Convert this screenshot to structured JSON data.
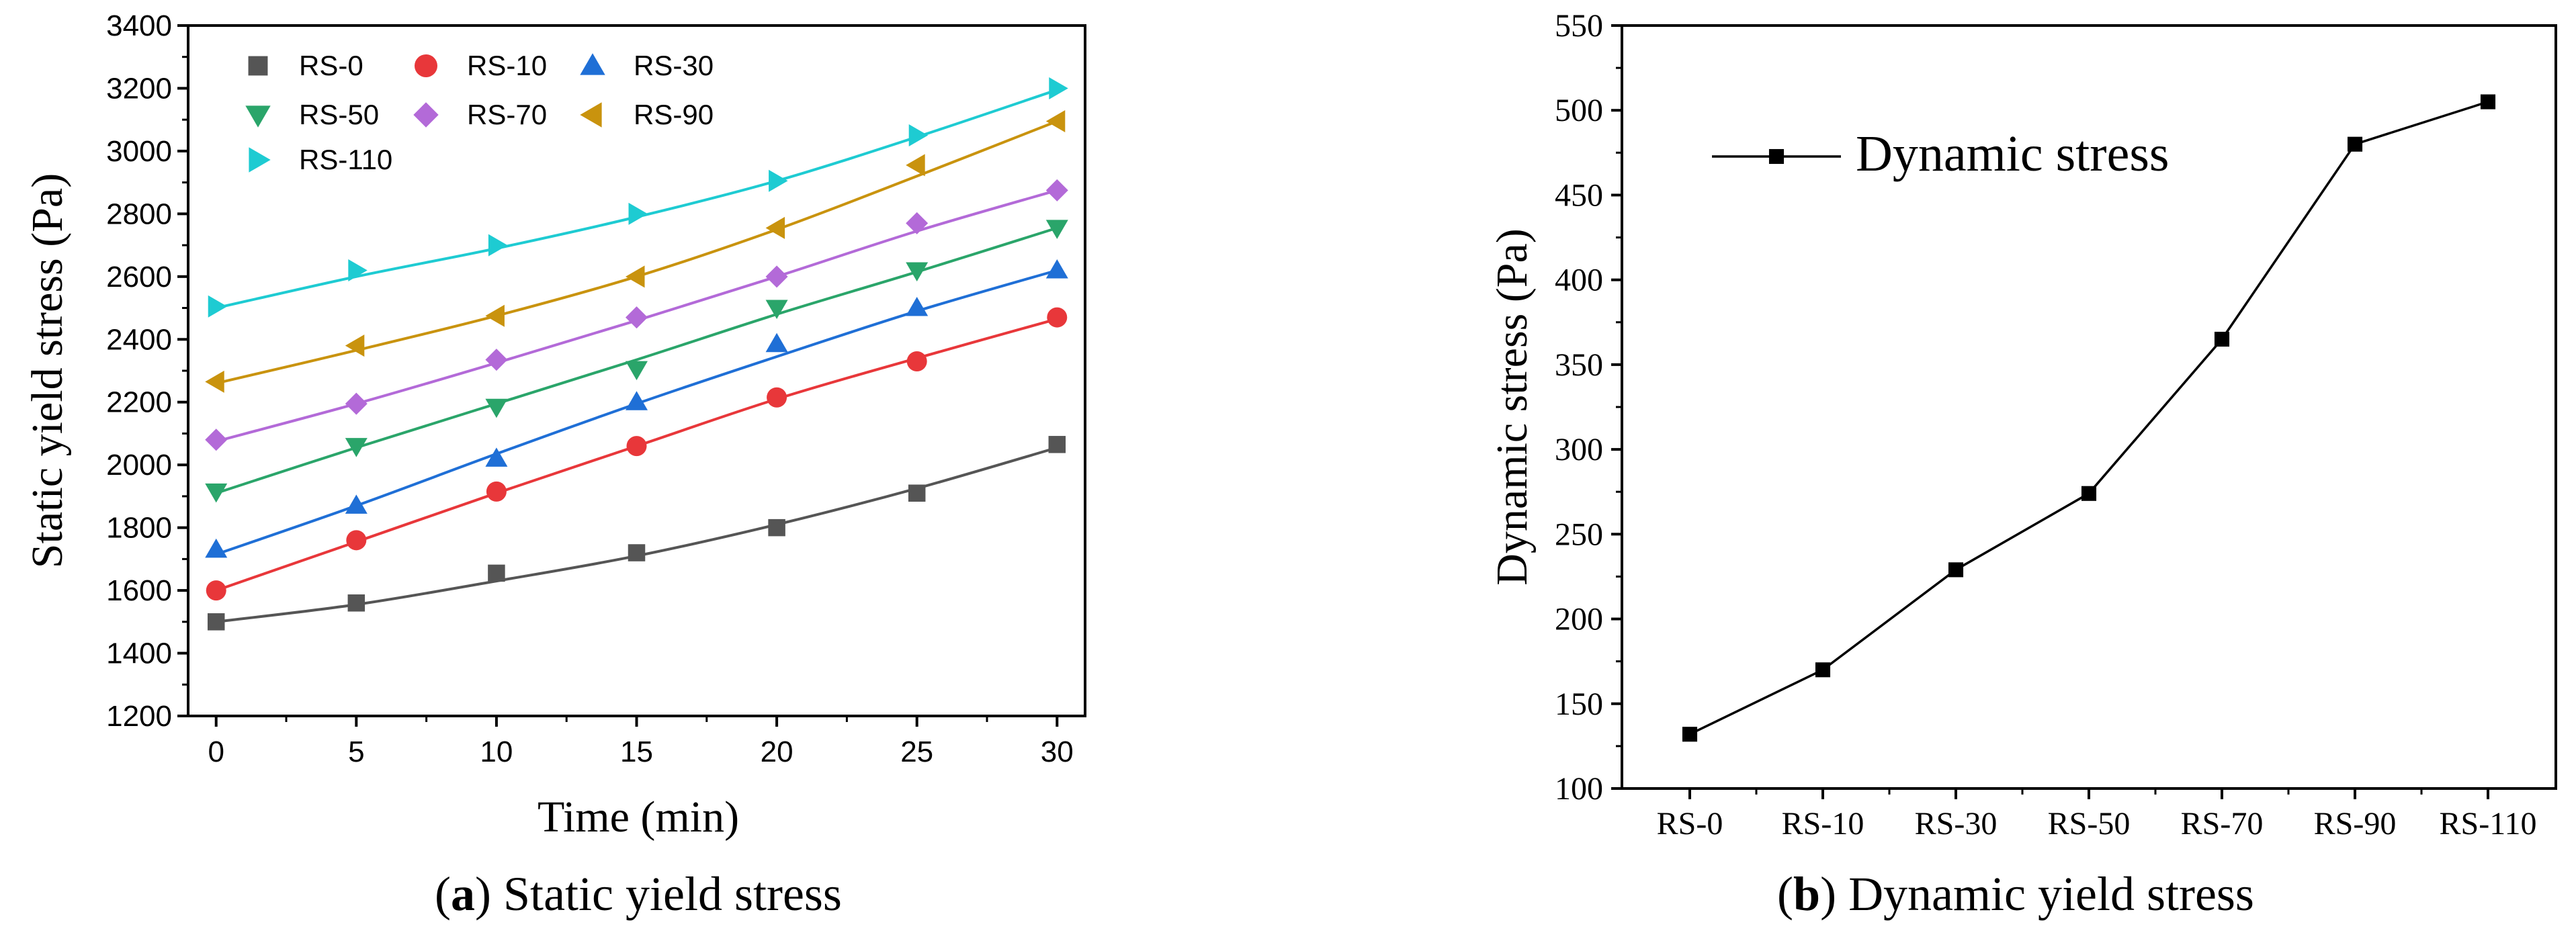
{
  "chart_data": [
    {
      "id": "a",
      "type": "scatter",
      "xlabel": "Time (min)",
      "ylabel": "Static yield stress (Pa)",
      "xlim": [
        -1,
        31
      ],
      "ylim": [
        1200,
        3400
      ],
      "xticks": [
        0,
        5,
        10,
        15,
        20,
        25,
        30
      ],
      "yticks": [
        1200,
        1400,
        1600,
        1800,
        2000,
        2200,
        2400,
        2600,
        2800,
        3000,
        3200,
        3400
      ],
      "legend_position": "top-left",
      "fit_lines": true,
      "x": [
        0,
        5,
        10,
        15,
        20,
        25,
        30
      ],
      "series": [
        {
          "name": "RS-0",
          "marker": "square",
          "color": "#555555",
          "values": [
            1500,
            1560,
            1655,
            1720,
            1800,
            1910,
            2065
          ],
          "fit": [
            1500,
            1555,
            1630,
            1710,
            1810,
            1925,
            2055
          ]
        },
        {
          "name": "RS-10",
          "marker": "circle",
          "color": "#e8373a",
          "values": [
            1600,
            1760,
            1915,
            2060,
            2215,
            2330,
            2470
          ],
          "fit": [
            1600,
            1755,
            1910,
            2060,
            2210,
            2340,
            2465
          ]
        },
        {
          "name": "RS-30",
          "marker": "triangle-up",
          "color": "#1f6fd6",
          "values": [
            1730,
            1870,
            2020,
            2200,
            2385,
            2500,
            2620
          ],
          "fit": [
            1715,
            1870,
            2035,
            2195,
            2345,
            2490,
            2620
          ]
        },
        {
          "name": "RS-50",
          "marker": "triangle-down",
          "color": "#2aa56a",
          "values": [
            1915,
            2060,
            2185,
            2305,
            2500,
            2620,
            2755
          ],
          "fit": [
            1910,
            2055,
            2195,
            2335,
            2480,
            2615,
            2755
          ]
        },
        {
          "name": "RS-70",
          "marker": "diamond",
          "color": "#b36ad8",
          "values": [
            2080,
            2195,
            2335,
            2470,
            2600,
            2770,
            2875
          ],
          "fit": [
            2075,
            2195,
            2325,
            2460,
            2600,
            2745,
            2875
          ]
        },
        {
          "name": "RS-90",
          "marker": "triangle-left",
          "color": "#c9930e",
          "values": [
            2265,
            2380,
            2475,
            2600,
            2755,
            2955,
            3095
          ],
          "fit": [
            2260,
            2365,
            2475,
            2600,
            2750,
            2920,
            3095
          ]
        },
        {
          "name": "RS-110",
          "marker": "triangle-right",
          "color": "#1ecbd2",
          "values": [
            2505,
            2620,
            2700,
            2800,
            2905,
            3050,
            3200
          ],
          "fit": [
            2500,
            2600,
            2690,
            2790,
            2905,
            3045,
            3195
          ]
        }
      ]
    },
    {
      "id": "b",
      "type": "line",
      "xlabel": "",
      "ylabel": "Dynamic stress (Pa)",
      "ylim": [
        100,
        550
      ],
      "yticks": [
        100,
        150,
        200,
        250,
        300,
        350,
        400,
        450,
        500,
        550
      ],
      "categories": [
        "RS-0",
        "RS-10",
        "RS-30",
        "RS-50",
        "RS-70",
        "RS-90",
        "RS-110"
      ],
      "legend_position": "top-left",
      "series": [
        {
          "name": "Dynamic stress",
          "marker": "square",
          "color": "#000000",
          "values": [
            132,
            170,
            229,
            274,
            365,
            480,
            505
          ]
        }
      ]
    }
  ],
  "captions": {
    "a_letter": "a",
    "a_text": "Static yield stress",
    "b_letter": "b",
    "b_text": "Dynamic yield stress"
  }
}
